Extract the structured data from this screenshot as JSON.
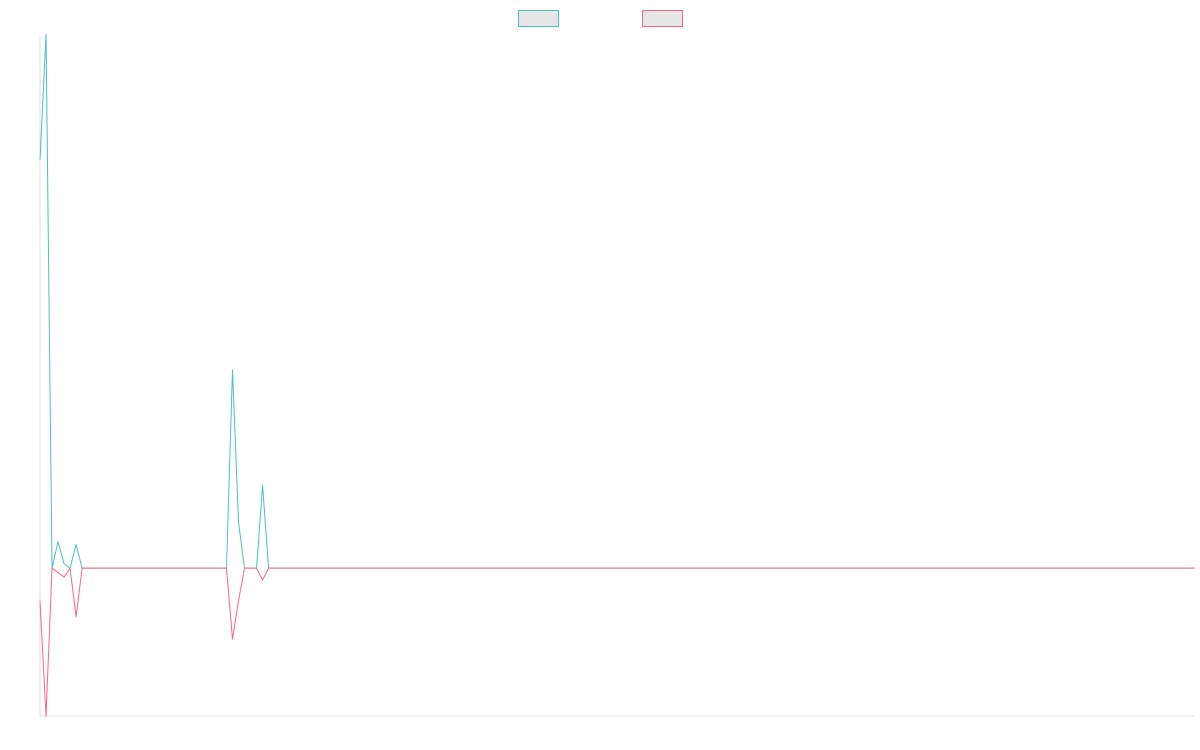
{
  "chart_data": {
    "type": "line",
    "title": "",
    "xlabel": "",
    "ylabel": "",
    "legend_position": "top-center",
    "grid": false,
    "x": [
      0,
      1,
      2,
      3,
      4,
      5,
      6,
      7,
      8,
      9,
      10,
      11,
      12,
      13,
      14,
      15,
      16,
      17,
      18,
      19,
      20,
      21,
      22,
      23,
      24,
      25,
      26,
      27,
      28,
      29,
      30,
      31,
      32,
      33,
      34,
      35,
      36,
      37,
      38,
      39,
      40,
      41,
      42,
      43,
      44,
      45,
      46,
      47,
      48,
      49,
      50,
      51,
      52,
      53,
      54,
      55,
      56,
      57,
      58,
      59,
      60,
      61,
      62,
      63,
      64,
      65,
      66,
      67,
      68,
      69,
      70,
      71,
      72,
      73,
      74,
      75,
      76,
      77,
      78,
      79,
      80,
      81,
      82,
      83,
      84,
      85,
      86,
      87,
      88,
      89,
      90,
      91,
      92,
      93,
      94,
      95,
      96,
      97,
      98,
      99,
      100,
      101,
      102,
      103,
      104,
      105,
      106,
      107,
      108,
      109,
      110,
      111,
      112,
      113,
      114,
      115,
      116,
      117,
      118,
      119,
      120,
      121,
      122,
      123,
      124,
      125,
      126,
      127,
      128,
      129,
      130,
      131,
      132,
      133,
      134,
      135,
      136,
      137,
      138,
      139,
      140,
      141,
      142,
      143,
      144,
      145,
      146,
      147,
      148,
      149,
      150,
      151,
      152,
      153,
      154,
      155,
      156,
      157,
      158,
      159,
      160,
      161,
      162,
      163,
      164,
      165,
      166,
      167,
      168,
      169,
      170,
      171,
      172,
      173,
      174,
      175,
      176,
      177,
      178,
      179,
      180,
      181,
      182,
      183,
      184,
      185,
      186,
      187,
      188,
      189,
      190,
      191,
      192
    ],
    "ylim": [
      -100,
      360
    ],
    "series": [
      {
        "color": "#4bc0c0",
        "values": [
          276,
          361,
          0,
          18,
          3,
          0,
          16,
          0,
          0,
          0,
          0,
          0,
          0,
          0,
          0,
          0,
          0,
          0,
          0,
          0,
          0,
          0,
          0,
          0,
          0,
          0,
          0,
          0,
          0,
          0,
          0,
          0,
          134,
          31,
          0,
          0,
          0,
          56,
          0,
          0,
          0,
          0,
          0,
          0,
          0,
          0,
          0,
          0,
          0,
          0,
          0,
          0,
          0,
          0,
          0,
          0,
          0,
          0,
          0,
          0,
          0,
          0,
          0,
          0,
          0,
          0,
          0,
          0,
          0,
          0,
          0,
          0,
          0,
          0,
          0,
          0,
          0,
          0,
          0,
          0,
          0,
          0,
          0,
          0,
          0,
          0,
          0,
          0,
          0,
          0,
          0,
          0,
          0,
          0,
          0,
          0,
          0,
          0,
          0,
          0,
          0,
          0,
          0,
          0,
          0,
          0,
          0,
          0,
          0,
          0,
          0,
          0,
          0,
          0,
          0,
          0,
          0,
          0,
          0,
          0,
          0,
          0,
          0,
          0,
          0,
          0,
          0,
          0,
          0,
          0,
          0,
          0,
          0,
          0,
          0,
          0,
          0,
          0,
          0,
          0,
          0,
          0,
          0,
          0,
          0,
          0,
          0,
          0,
          0,
          0,
          0,
          0,
          0,
          0,
          0,
          0,
          0,
          0,
          0,
          0,
          0,
          0,
          0,
          0,
          0,
          0,
          0,
          0,
          0,
          0,
          0,
          0,
          0,
          0,
          0,
          0,
          0,
          0,
          0,
          0,
          0,
          0,
          0,
          0,
          0,
          0,
          0,
          0,
          0,
          0,
          0,
          0,
          0
        ]
      },
      {
        "color": "#ff6384",
        "values": [
          -22,
          -100,
          0,
          -3,
          -6,
          0,
          -33,
          0,
          0,
          0,
          0,
          0,
          0,
          0,
          0,
          0,
          0,
          0,
          0,
          0,
          0,
          0,
          0,
          0,
          0,
          0,
          0,
          0,
          0,
          0,
          0,
          0,
          -48,
          -22,
          0,
          0,
          0,
          -8,
          0,
          0,
          0,
          0,
          0,
          0,
          0,
          0,
          0,
          0,
          0,
          0,
          0,
          0,
          0,
          0,
          0,
          0,
          0,
          0,
          0,
          0,
          0,
          0,
          0,
          0,
          0,
          0,
          0,
          0,
          0,
          0,
          0,
          0,
          0,
          0,
          0,
          0,
          0,
          0,
          0,
          0,
          0,
          0,
          0,
          0,
          0,
          0,
          0,
          0,
          0,
          0,
          0,
          0,
          0,
          0,
          0,
          0,
          0,
          0,
          0,
          0,
          0,
          0,
          0,
          0,
          0,
          0,
          0,
          0,
          0,
          0,
          0,
          0,
          0,
          0,
          0,
          0,
          0,
          0,
          0,
          0,
          0,
          0,
          0,
          0,
          0,
          0,
          0,
          0,
          0,
          0,
          0,
          0,
          0,
          0,
          0,
          0,
          0,
          0,
          0,
          0,
          0,
          0,
          0,
          0,
          0,
          0,
          0,
          0,
          0,
          0,
          0,
          0,
          0,
          0,
          0,
          0,
          0,
          0,
          0,
          0,
          0,
          0,
          0,
          0,
          0,
          0,
          0,
          0,
          0,
          0,
          0,
          0,
          0,
          0,
          0,
          0,
          0,
          0,
          0,
          0,
          0,
          0,
          0,
          0,
          0,
          0,
          0,
          0,
          0,
          0,
          0,
          0,
          0
        ]
      }
    ]
  }
}
